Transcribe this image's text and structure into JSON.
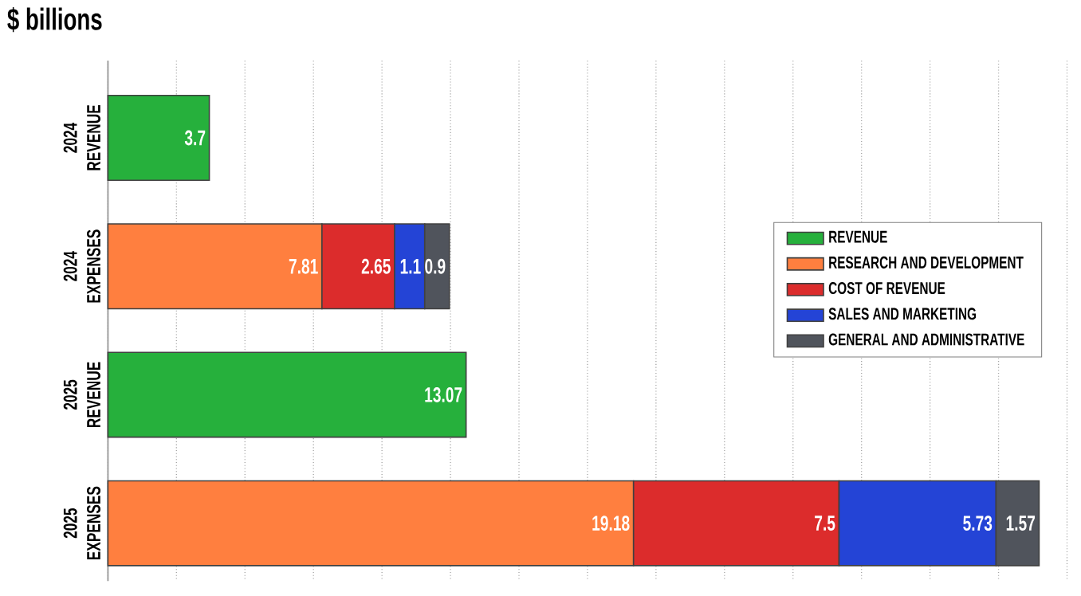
{
  "chart_data": {
    "type": "bar",
    "orientation": "horizontal",
    "stacked": true,
    "title": "$ billions",
    "categories": [
      "2024 REVENUE",
      "2024 EXPENSES",
      "2025 REVENUE",
      "2025 EXPENSES"
    ],
    "series": [
      {
        "name": "REVENUE",
        "color": "#26b03c",
        "values": [
          3.7,
          null,
          13.07,
          null
        ]
      },
      {
        "name": "RESEARCH AND DEVELOPMENT",
        "color": "#ff7f3f",
        "values": [
          null,
          7.81,
          null,
          19.18
        ]
      },
      {
        "name": "COST OF REVENUE",
        "color": "#dc2c2c",
        "values": [
          null,
          2.65,
          null,
          7.5
        ]
      },
      {
        "name": "SALES AND MARKETING",
        "color": "#2444d6",
        "values": [
          null,
          1.1,
          null,
          5.73
        ]
      },
      {
        "name": "GENERAL AND ADMINISTRATIVE",
        "color": "#50545c",
        "values": [
          null,
          0.9,
          null,
          1.57
        ]
      }
    ],
    "tick_labels": "y",
    "grid": "x",
    "legend": "right",
    "data_labels": true
  }
}
